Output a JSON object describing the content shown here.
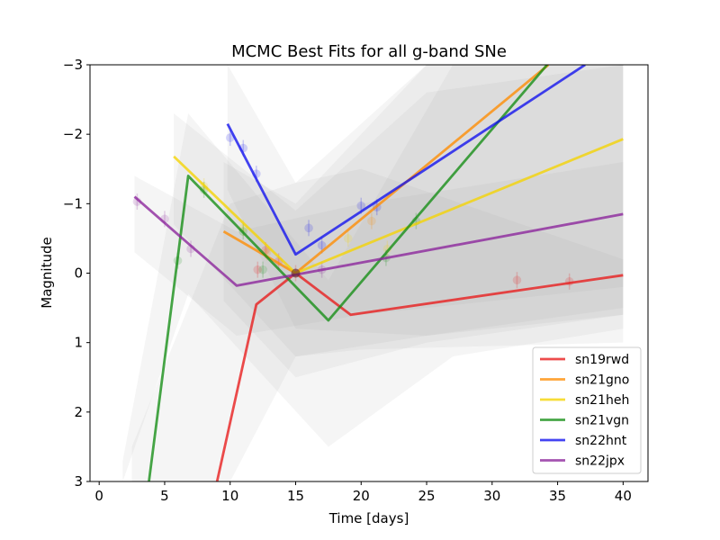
{
  "chart_data": {
    "type": "line",
    "title": "MCMC Best Fits for all g-band SNe",
    "xlabel": "Time [days]",
    "ylabel": "Magnitude",
    "xlim": [
      -0.7,
      41.9
    ],
    "ylim": [
      3,
      -3
    ],
    "y_inverted": true,
    "x_ticks": [
      0,
      5,
      10,
      15,
      20,
      25,
      30,
      35,
      40
    ],
    "y_ticks": [
      3,
      2,
      1,
      0,
      -1,
      -2,
      -3
    ],
    "y_tick_labels": [
      "3",
      "2",
      "1",
      "0",
      "−1",
      "−2",
      "−3"
    ],
    "grid": false,
    "legend_position": "lower-right",
    "series": [
      {
        "name": "sn19rwd",
        "color": "#e8191a",
        "fit": [
          [
            9,
            3.0
          ],
          [
            12.0,
            0.45
          ],
          [
            15,
            0.0
          ],
          [
            19.2,
            0.6
          ],
          [
            40,
            0.03
          ]
        ],
        "points": [
          [
            12.7,
            -0.33
          ],
          [
            13.7,
            -0.17
          ],
          [
            12.1,
            -0.05
          ],
          [
            15,
            0.0
          ],
          [
            31.9,
            0.1
          ],
          [
            35.9,
            0.12
          ]
        ],
        "band": [
          [
            2.5,
            3.0,
            2.5
          ],
          [
            10.0,
            3.0,
            -1.0
          ],
          [
            15.0,
            1.2,
            -1.3
          ],
          [
            20.0,
            1.1,
            -1.5
          ],
          [
            40.0,
            1.0,
            -0.2
          ]
        ]
      },
      {
        "name": "sn21gno",
        "color": "#ff8c00",
        "fit": [
          [
            9.5,
            -0.6
          ],
          [
            15,
            0.0
          ],
          [
            34.3,
            -3.0
          ]
        ],
        "points": [
          [
            20.8,
            -0.75
          ],
          [
            12.8,
            -0.3
          ]
        ],
        "band": [
          [
            9.5,
            0.4,
            -1.6
          ],
          [
            15.0,
            1.5,
            -1.0
          ],
          [
            25.0,
            1.0,
            -3.0
          ],
          [
            40.0,
            0.6,
            -3.0
          ]
        ]
      },
      {
        "name": "sn21heh",
        "color": "#f5d400",
        "fit": [
          [
            5.7,
            -1.68
          ],
          [
            15,
            0.0
          ],
          [
            40,
            -1.93
          ]
        ],
        "points": [
          [
            8.0,
            -1.25
          ],
          [
            11.0,
            -0.65
          ],
          [
            19.0,
            -0.5
          ],
          [
            22.0,
            -0.35
          ]
        ],
        "band": [
          [
            5.7,
            -0.7,
            -2.3
          ],
          [
            15.0,
            1.2,
            -0.9
          ],
          [
            25.0,
            0.9,
            -2.6
          ],
          [
            40.0,
            0.6,
            -3.0
          ]
        ]
      },
      {
        "name": "sn21vgn",
        "color": "#138d13",
        "fit": [
          [
            3.8,
            3.0
          ],
          [
            6.8,
            -1.4
          ],
          [
            17.5,
            0.68
          ],
          [
            34.2,
            -3.0
          ]
        ],
        "points": [
          [
            6.0,
            -0.18
          ],
          [
            8.0,
            -1.2
          ],
          [
            11.0,
            -0.6
          ],
          [
            12.5,
            -0.05
          ],
          [
            21.9,
            -0.22
          ],
          [
            24.2,
            -0.75
          ]
        ],
        "band": [
          [
            1.8,
            3.0,
            2.7
          ],
          [
            6.8,
            0.3,
            -2.3
          ],
          [
            17.5,
            2.5,
            0.1
          ],
          [
            27.0,
            1.2,
            -3.0
          ],
          [
            40.0,
            0.8,
            -3.0
          ]
        ]
      },
      {
        "name": "sn22hnt",
        "color": "#1010ee",
        "fit": [
          [
            9.8,
            -2.15
          ],
          [
            15,
            -0.27
          ],
          [
            37.1,
            -3.0
          ]
        ],
        "points": [
          [
            10.0,
            -1.95
          ],
          [
            11.0,
            -1.8
          ],
          [
            12.0,
            -1.43
          ],
          [
            16.0,
            -0.65
          ],
          [
            17.0,
            -0.4
          ],
          [
            20.0,
            -0.97
          ],
          [
            21.2,
            -0.95
          ]
        ],
        "band": [
          [
            9.8,
            -1.2,
            -3.0
          ],
          [
            15.0,
            0.8,
            -1.3
          ],
          [
            25.0,
            0.9,
            -3.0
          ],
          [
            40.0,
            0.5,
            -3.0
          ]
        ]
      },
      {
        "name": "sn22jpx",
        "color": "#8b239b",
        "fit": [
          [
            2.7,
            -1.1
          ],
          [
            10.5,
            0.18
          ],
          [
            40,
            -0.85
          ]
        ],
        "points": [
          [
            2.9,
            -1.03
          ],
          [
            5.0,
            -0.78
          ],
          [
            7.0,
            -0.35
          ],
          [
            17.0,
            -0.05
          ]
        ],
        "band": [
          [
            2.7,
            -0.3,
            -1.4
          ],
          [
            10.5,
            0.9,
            -0.6
          ],
          [
            20.0,
            0.6,
            -1.0
          ],
          [
            40.0,
            0.2,
            -1.6
          ]
        ]
      }
    ]
  }
}
